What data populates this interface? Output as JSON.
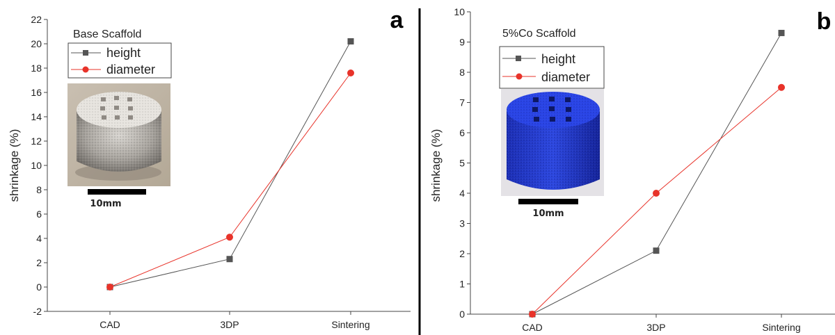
{
  "chart_data": [
    {
      "type": "line",
      "panel_label": "a",
      "inset_title": "Base Scaffold",
      "categories": [
        "CAD",
        "3DP",
        "Sintering"
      ],
      "series": [
        {
          "name": "height",
          "values": [
            0,
            2.3,
            20.2
          ],
          "color": "#555555",
          "marker": "square"
        },
        {
          "name": "diameter",
          "values": [
            0,
            4.1,
            17.6
          ],
          "color": "#e8332a",
          "marker": "circle"
        }
      ],
      "ylabel": "shrinkage (%)",
      "ylim": [
        -2,
        22
      ],
      "yticks": [
        -2,
        0,
        2,
        4,
        6,
        8,
        10,
        12,
        14,
        16,
        18,
        20,
        22
      ],
      "legend_position": "top-left",
      "grid": false,
      "inset_photo": {
        "object": "white porous cylinder scaffold",
        "scale_bar_label": "10mm"
      }
    },
    {
      "type": "line",
      "panel_label": "b",
      "inset_title": "5%Co Scaffold",
      "categories": [
        "CAD",
        "3DP",
        "Sintering"
      ],
      "series": [
        {
          "name": "height",
          "values": [
            0,
            2.1,
            9.3
          ],
          "color": "#555555",
          "marker": "square"
        },
        {
          "name": "diameter",
          "values": [
            0,
            4.0,
            7.5
          ],
          "color": "#e8332a",
          "marker": "circle"
        }
      ],
      "ylabel": "shrinkage (%)",
      "ylim": [
        0,
        10
      ],
      "yticks": [
        0,
        1,
        2,
        3,
        4,
        5,
        6,
        7,
        8,
        9,
        10
      ],
      "legend_position": "top-left",
      "grid": false,
      "inset_photo": {
        "object": "blue porous cylinder scaffold",
        "scale_bar_label": "10mm"
      }
    }
  ]
}
